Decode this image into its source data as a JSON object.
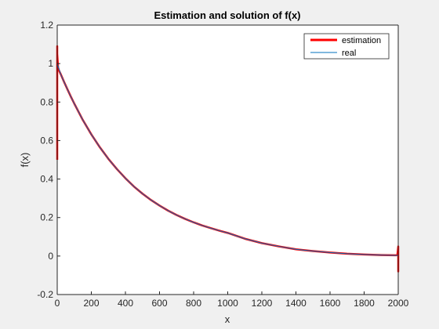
{
  "chart_data": {
    "type": "line",
    "title": "Estimation and solution of f(x)",
    "xlabel": "x",
    "ylabel": "f(x)",
    "xlim": [
      0,
      2000
    ],
    "ylim": [
      -0.2,
      1.2
    ],
    "xticks": [
      0,
      200,
      400,
      600,
      800,
      1000,
      1200,
      1400,
      1600,
      1800,
      2000
    ],
    "yticks": [
      -0.2,
      0,
      0.2,
      0.4,
      0.6,
      0.8,
      1,
      1.2
    ],
    "xtick_labels": [
      "0",
      "200",
      "400",
      "600",
      "800",
      "1000",
      "1200",
      "1400",
      "1600",
      "1800",
      "2000"
    ],
    "ytick_labels": [
      "-0.2",
      "0",
      "0.2",
      "0.4",
      "0.6",
      "0.8",
      "1",
      "1.2"
    ],
    "grid": false,
    "legend_position": "top-right",
    "series": [
      {
        "name": "estimation",
        "color": "#ff0000",
        "x": [
          0,
          0,
          0,
          0,
          5,
          10,
          20,
          40,
          60,
          80,
          100,
          150,
          200,
          250,
          300,
          350,
          400,
          450,
          500,
          550,
          600,
          650,
          700,
          750,
          800,
          850,
          900,
          950,
          1000,
          1100,
          1200,
          1300,
          1400,
          1500,
          1600,
          1700,
          1800,
          1900,
          1980,
          1990,
          1995,
          2000,
          2000,
          2000,
          2000
        ],
        "y": [
          0.5,
          1.09,
          0.58,
          1.05,
          0.98,
          0.965,
          0.946,
          0.905,
          0.866,
          0.828,
          0.792,
          0.707,
          0.632,
          0.565,
          0.505,
          0.452,
          0.404,
          0.361,
          0.324,
          0.291,
          0.262,
          0.236,
          0.213,
          0.193,
          0.175,
          0.159,
          0.145,
          0.132,
          0.12,
          0.09,
          0.067,
          0.05,
          0.035,
          0.026,
          0.018,
          0.012,
          0.008,
          0.005,
          0.004,
          0.004,
          0.006,
          0.05,
          -0.08,
          0.04,
          0.0
        ]
      },
      {
        "name": "real",
        "color": "#0072bd",
        "x": [
          0,
          20,
          40,
          60,
          80,
          100,
          150,
          200,
          250,
          300,
          350,
          400,
          450,
          500,
          550,
          600,
          650,
          700,
          750,
          800,
          850,
          900,
          950,
          1000,
          1100,
          1200,
          1300,
          1400,
          1500,
          1600,
          1700,
          1800,
          1900,
          2000
        ],
        "y": [
          1.0,
          0.946,
          0.905,
          0.866,
          0.828,
          0.792,
          0.707,
          0.632,
          0.565,
          0.505,
          0.452,
          0.404,
          0.361,
          0.324,
          0.291,
          0.262,
          0.236,
          0.213,
          0.193,
          0.175,
          0.159,
          0.145,
          0.132,
          0.12,
          0.09,
          0.067,
          0.05,
          0.035,
          0.026,
          0.018,
          0.012,
          0.008,
          0.005,
          0.003
        ]
      }
    ]
  }
}
